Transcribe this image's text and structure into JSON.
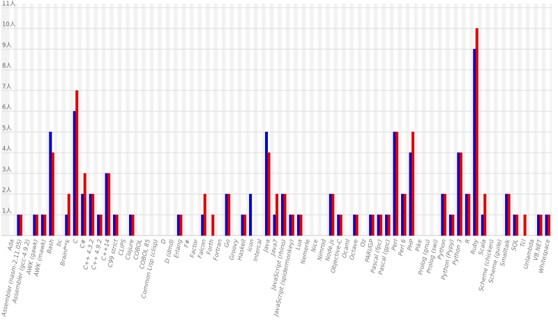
{
  "chart_data": {
    "type": "bar",
    "categories": [
      "Ada",
      "Assembler (nasm-2.11.05)",
      "Assembler (gcc-4.9.2)",
      "AWK (gawk)",
      "AWK (mawk)",
      "Bash",
      "bc",
      "Brainf**k",
      "C",
      "C#",
      "C++ 4.3.2",
      "C++ 4.9.2",
      "C++14",
      "C99 strict",
      "CLIPS",
      "Clojure",
      "COBOL",
      "COBOL 85",
      "Common Lisp (clisp)",
      "D",
      "D (dmd)",
      "Erlang",
      "F#",
      "Factor",
      "Falcon",
      "Forth",
      "Fortran",
      "Go",
      "Groovy",
      "Haskell",
      "Icon",
      "Intercal",
      "Java",
      "Java7",
      "JavaScript (rhino)",
      "JavaScript (spidermonkey)",
      "Lua",
      "Nemerle",
      "Nice",
      "Nimrod",
      "Node.js",
      "Objective-C",
      "Ocaml",
      "Octave",
      "Oz",
      "PARI/GP",
      "Pascal (fpc)",
      "Pascal (gpc)",
      "Perl",
      "Perl 6",
      "PHP",
      "Pike",
      "Prolog (gnu)",
      "Prolog (swi)",
      "Python",
      "Python (Pypy)",
      "Python 3",
      "R",
      "Ruby",
      "Scala",
      "Scheme (chicken)",
      "Scheme (guile)",
      "Smalltalk",
      "SQL",
      "Tcl",
      "Unlambda",
      "VB.NET",
      "Whitespace"
    ],
    "series": [
      {
        "color": "#0000cc",
        "values": [
          0,
          1,
          0,
          1,
          1,
          5,
          0,
          1,
          6,
          2,
          2,
          1,
          3,
          1,
          0,
          1,
          0,
          0,
          0,
          0,
          0,
          1,
          0,
          0,
          1,
          0,
          0,
          2,
          0,
          1,
          2,
          0,
          5,
          1,
          2,
          1,
          1,
          0,
          0,
          0,
          2,
          1,
          0,
          1,
          0,
          1,
          1,
          1,
          5,
          2,
          4,
          0,
          0,
          0,
          2,
          1,
          4,
          2,
          9,
          1,
          0,
          0,
          2,
          1,
          0,
          0,
          1,
          1
        ]
      },
      {
        "color": "#e00000",
        "values": [
          0,
          1,
          0,
          1,
          1,
          4,
          0,
          2,
          7,
          3,
          2,
          1,
          3,
          1,
          0,
          1,
          0,
          0,
          0,
          0,
          0,
          1,
          0,
          0,
          2,
          1,
          0,
          2,
          0,
          1,
          0,
          0,
          4,
          2,
          2,
          1,
          1,
          0,
          0,
          0,
          2,
          1,
          0,
          1,
          0,
          1,
          1,
          1,
          5,
          2,
          5,
          0,
          0,
          0,
          2,
          1,
          4,
          2,
          10,
          2,
          0,
          0,
          2,
          1,
          1,
          0,
          1,
          1
        ]
      }
    ],
    "ylim": [
      0,
      11
    ],
    "yticks": [
      {
        "value": 1,
        "label": "1人"
      },
      {
        "value": 2,
        "label": "2人"
      },
      {
        "value": 3,
        "label": "3人"
      },
      {
        "value": 4,
        "label": "4人"
      },
      {
        "value": 5,
        "label": "5人"
      },
      {
        "value": 6,
        "label": "6人"
      },
      {
        "value": 7,
        "label": "7人"
      },
      {
        "value": 8,
        "label": "8人"
      },
      {
        "value": 9,
        "label": "9人"
      },
      {
        "value": 10,
        "label": "10人"
      },
      {
        "value": 11,
        "label": "11人"
      }
    ],
    "grid": true
  }
}
